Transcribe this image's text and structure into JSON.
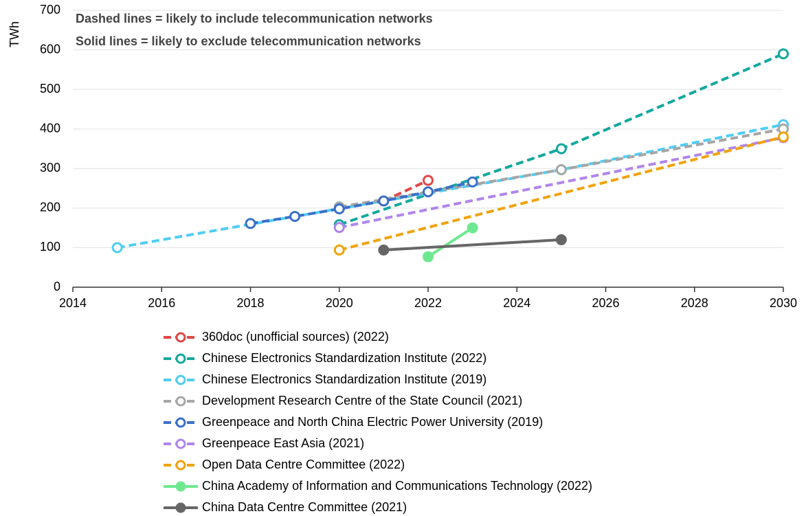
{
  "chart_data": {
    "type": "line",
    "y_label": "TWh",
    "annotations": [
      "Dashed lines = likely to include telecommunication networks",
      "Solid lines = likely to exclude telecommunication networks"
    ],
    "xlim": [
      2014,
      2030
    ],
    "xticks": [
      2014,
      2016,
      2018,
      2020,
      2022,
      2024,
      2026,
      2028,
      2030
    ],
    "ylim": [
      0,
      700
    ],
    "yticks": [
      0,
      100,
      200,
      300,
      400,
      500,
      600,
      700
    ],
    "grid": true,
    "legend": "bottom",
    "series": [
      {
        "name": "360doc (unofficial sources) (2022)",
        "color": "#e04848",
        "line_style": "dashed",
        "marker": "open",
        "x": [
          2021,
          2022
        ],
        "values": [
          218,
          270
        ]
      },
      {
        "name": "Chinese Electronics Standardization Institute (2022)",
        "color": "#13a89e",
        "line_style": "dashed",
        "marker": "open",
        "x": [
          2020,
          2025,
          2030
        ],
        "values": [
          158,
          350,
          590
        ]
      },
      {
        "name": "Chinese Electronics Standardization Institute (2019)",
        "color": "#4fcdf5",
        "line_style": "dashed",
        "marker": "open",
        "x": [
          2015,
          2025,
          2030
        ],
        "values": [
          100,
          297,
          411
        ]
      },
      {
        "name": "Development Research Centre of the State Council (2021)",
        "color": "#a6a6a6",
        "line_style": "dashed",
        "marker": "open",
        "x": [
          2020,
          2025,
          2030
        ],
        "values": [
          203,
          297,
          400
        ]
      },
      {
        "name": "Greenpeace and North China Electric Power University (2019)",
        "color": "#3a70c8",
        "line_style": "dashed",
        "marker": "open",
        "x": [
          2018,
          2019,
          2020,
          2021,
          2022,
          2023
        ],
        "values": [
          161,
          179,
          198,
          218,
          241,
          266
        ]
      },
      {
        "name": "Greenpeace East Asia (2021)",
        "color": "#b085ea",
        "line_style": "dashed",
        "marker": "open",
        "x": [
          2020,
          2030
        ],
        "values": [
          151,
          378
        ]
      },
      {
        "name": "Open Data Centre Committee (2022)",
        "color": "#f0a30a",
        "line_style": "dashed",
        "marker": "open",
        "x": [
          2020,
          2030
        ],
        "values": [
          94,
          380
        ]
      },
      {
        "name": "China Academy of Information and Communications Technology (2022)",
        "color": "#6ee890",
        "line_style": "solid",
        "marker": "filled",
        "x": [
          2022,
          2023
        ],
        "values": [
          77,
          150
        ]
      },
      {
        "name": "China Data Centre Committee (2021)",
        "color": "#666666",
        "line_style": "solid",
        "marker": "filled",
        "x": [
          2021,
          2025
        ],
        "values": [
          94,
          120
        ]
      }
    ]
  }
}
